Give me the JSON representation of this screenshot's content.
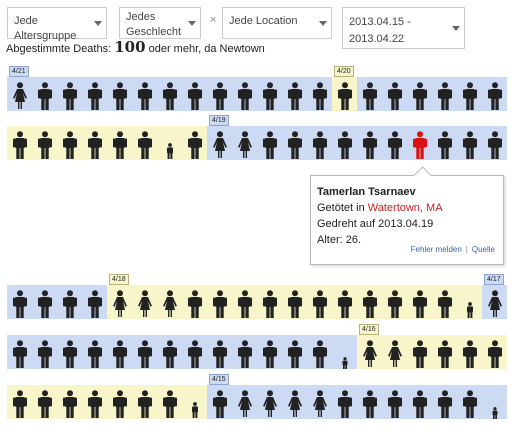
{
  "filters": {
    "age": "Jede Altersgruppe",
    "gender": "Jedes Geschlecht",
    "separator": "×",
    "location": "Jede Location",
    "date_range": "2013.04.15 - 2013.04.22"
  },
  "subtitle": {
    "prefix": "Abgestimmte Deaths:",
    "count": "100",
    "suffix": "oder mehr, da Newtown"
  },
  "colors": {
    "blue_day": "#ccdaf3",
    "yellow_day": "#f8f5cb",
    "figure": "#222222",
    "highlight": "#dd1111"
  },
  "rows": [
    {
      "tags": [
        {
          "label": "4/21",
          "index": 0,
          "style": "b"
        },
        {
          "label": "4/20",
          "index": 13,
          "style": "y"
        }
      ],
      "segments": [
        {
          "color": "blue",
          "from": 0,
          "to": 13
        },
        {
          "color": "yellow",
          "from": 13,
          "to": 14
        },
        {
          "color": "blue",
          "from": 14,
          "to": 20
        }
      ],
      "figures": [
        "fw",
        "m",
        "m",
        "m",
        "m",
        "m",
        "m",
        "m",
        "m",
        "m",
        "m",
        "m",
        "m",
        "m",
        "m",
        "m",
        "m",
        "m",
        "m",
        "m"
      ]
    },
    {
      "tags": [
        {
          "label": "4/19",
          "index": 8,
          "style": "b"
        }
      ],
      "segments": [
        {
          "color": "yellow",
          "from": 0,
          "to": 8
        },
        {
          "color": "blue",
          "from": 8,
          "to": 20
        }
      ],
      "figures": [
        "m",
        "m",
        "m",
        "m",
        "m",
        "m",
        "c",
        "m",
        "fw",
        "fw",
        "m",
        "m",
        "m",
        "m",
        "m",
        "m",
        "mr",
        "m",
        "m",
        "m"
      ]
    },
    {
      "tags": [
        {
          "label": "4/18",
          "index": 4,
          "style": "y"
        },
        {
          "label": "4/17",
          "index": 19,
          "style": "b"
        }
      ],
      "segments": [
        {
          "color": "blue",
          "from": 0,
          "to": 4
        },
        {
          "color": "yellow",
          "from": 4,
          "to": 19
        },
        {
          "color": "blue",
          "from": 19,
          "to": 20
        }
      ],
      "figures": [
        "m",
        "m",
        "m",
        "m",
        "fw",
        "fw",
        "fw",
        "m",
        "m",
        "m",
        "m",
        "m",
        "m",
        "m",
        "m",
        "m",
        "m",
        "m",
        "c",
        "fw"
      ]
    },
    {
      "tags": [
        {
          "label": "4/16",
          "index": 14,
          "style": "y"
        }
      ],
      "segments": [
        {
          "color": "blue",
          "from": 0,
          "to": 14
        },
        {
          "color": "yellow",
          "from": 14,
          "to": 20
        }
      ],
      "figures": [
        "m",
        "m",
        "m",
        "m",
        "m",
        "m",
        "m",
        "m",
        "m",
        "m",
        "m",
        "m",
        "m",
        "b",
        "fw",
        "fw",
        "m",
        "m",
        "m",
        "m"
      ]
    },
    {
      "tags": [
        {
          "label": "4/15",
          "index": 8,
          "style": "b"
        }
      ],
      "segments": [
        {
          "color": "yellow",
          "from": 0,
          "to": 8
        },
        {
          "color": "blue",
          "from": 8,
          "to": 20
        }
      ],
      "figures": [
        "m",
        "m",
        "m",
        "m",
        "m",
        "m",
        "m",
        "c",
        "m",
        "fw",
        "fw",
        "fw",
        "fw",
        "m",
        "m",
        "m",
        "m",
        "m",
        "m",
        "b"
      ]
    }
  ],
  "tooltip": {
    "name": "Tamerlan Tsarnaev",
    "killed_prefix": "Getötet in",
    "location": "Watertown, MA",
    "shot_line": "Gedreht auf 2013.04.19",
    "age_line": "Alter: 26.",
    "report_link": "Fehler melden",
    "link_separator": "|",
    "source_link": "Quelle"
  }
}
